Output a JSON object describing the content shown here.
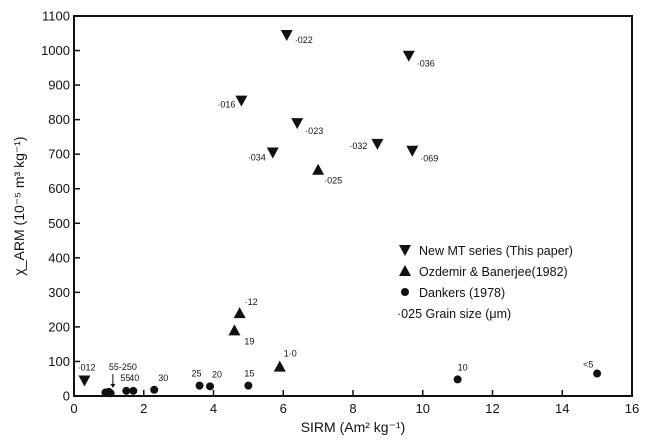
{
  "chart_data": {
    "type": "scatter",
    "title": "",
    "xlabel": "SIRM (Am² kg⁻¹)",
    "ylabel": "χ_ARM (10⁻⁵ m³ kg⁻¹)",
    "xlim": [
      0,
      16
    ],
    "ylim": [
      0,
      1100
    ],
    "xticks": [
      "0",
      "2",
      "4",
      "6",
      "8",
      "10",
      "12",
      "14",
      "16"
    ],
    "yticks": [
      "0",
      "100",
      "200",
      "300",
      "400",
      "500",
      "600",
      "700",
      "800",
      "900",
      "1000",
      "1100"
    ],
    "grid": false,
    "legend_position": "right",
    "series": [
      {
        "name": "New MT series (This paper)",
        "marker": "triangle-down",
        "points": [
          {
            "x": 0.3,
            "y": 45,
            "label": "·012"
          },
          {
            "x": 4.8,
            "y": 855,
            "label": "·016"
          },
          {
            "x": 6.1,
            "y": 1045,
            "label": "·022"
          },
          {
            "x": 6.4,
            "y": 790,
            "label": "·023"
          },
          {
            "x": 5.7,
            "y": 705,
            "label": "·034"
          },
          {
            "x": 8.7,
            "y": 730,
            "label": "·032"
          },
          {
            "x": 9.6,
            "y": 985,
            "label": "·036"
          },
          {
            "x": 9.7,
            "y": 710,
            "label": "·069"
          }
        ]
      },
      {
        "name": "Ozdemir  &  Banerjee(1982)",
        "marker": "triangle-up",
        "points": [
          {
            "x": 4.6,
            "y": 190,
            "label": "19"
          },
          {
            "x": 4.75,
            "y": 240,
            "label": "·12"
          },
          {
            "x": 7.0,
            "y": 655,
            "label": "·025"
          },
          {
            "x": 5.9,
            "y": 85,
            "label": "1·0"
          }
        ]
      },
      {
        "name": "Dankers (1978)",
        "marker": "circle",
        "points": [
          {
            "x": 0.9,
            "y": 10,
            "label": ""
          },
          {
            "x": 1.0,
            "y": 12,
            "label": "55-250"
          },
          {
            "x": 1.05,
            "y": 8,
            "label": ""
          },
          {
            "x": 1.5,
            "y": 15,
            "label": "55"
          },
          {
            "x": 1.7,
            "y": 15,
            "label": "40"
          },
          {
            "x": 2.3,
            "y": 18,
            "label": "30"
          },
          {
            "x": 3.6,
            "y": 30,
            "label": "25"
          },
          {
            "x": 3.9,
            "y": 28,
            "label": "20"
          },
          {
            "x": 5.0,
            "y": 30,
            "label": "15"
          },
          {
            "x": 11.0,
            "y": 48,
            "label": "10"
          },
          {
            "x": 15.0,
            "y": 65,
            "label": "<5"
          }
        ]
      }
    ],
    "legend_note": "·025 Grain size (μm)"
  }
}
